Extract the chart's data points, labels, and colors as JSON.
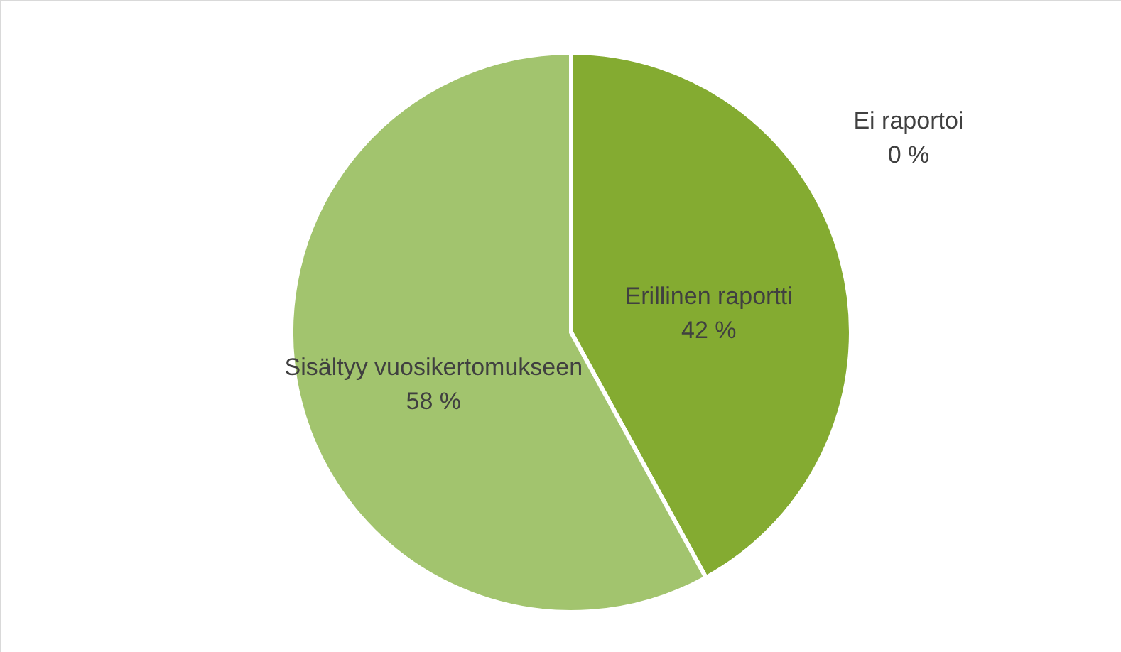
{
  "chart_data": {
    "type": "pie",
    "categories": [
      "Erillinen raportti",
      "Sisältyy vuosikertomukseen",
      "Ei raportoi"
    ],
    "values": [
      42,
      58,
      0
    ],
    "colors": [
      "#84ab31",
      "#a2c46e",
      "#c5dca0"
    ],
    "value_labels": [
      "42 %",
      "58 %",
      "0 %"
    ]
  }
}
